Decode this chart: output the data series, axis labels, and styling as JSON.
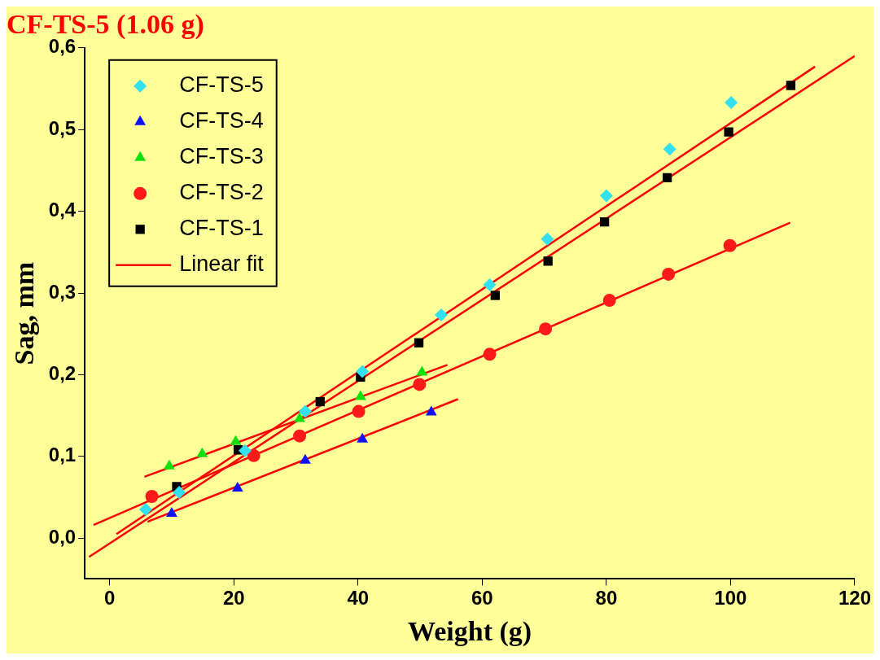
{
  "chart_data": {
    "type": "scatter",
    "title": "CF-TS-5 (1.06 g)",
    "xlabel": "Weight (g)",
    "ylabel": "Sag, mm",
    "xlim": [
      -4,
      120
    ],
    "ylim": [
      -0.05,
      0.6
    ],
    "xticks": [
      0,
      20,
      40,
      60,
      80,
      100,
      120
    ],
    "yticks": [
      {
        "value": 0,
        "label": "0,0"
      },
      {
        "value": 0.1,
        "label": "0,1"
      },
      {
        "value": 0.2,
        "label": "0,2"
      },
      {
        "value": 0.3,
        "label": "0,3"
      },
      {
        "value": 0.4,
        "label": "0,4"
      },
      {
        "value": 0.5,
        "label": "0,5"
      },
      {
        "value": 0.6,
        "label": "0,6"
      }
    ],
    "grid": false,
    "legend": "top left",
    "series": [
      {
        "name": "CF-TS-5",
        "type": "scatter",
        "marker": "diamond",
        "color": "#33e0f0",
        "x": [
          5.8,
          11.2,
          21.8,
          31.5,
          40.7,
          53.4,
          61.2,
          70.5,
          80,
          90.2,
          100.1
        ],
        "values": [
          0.035,
          0.056,
          0.107,
          0.155,
          0.204,
          0.273,
          0.31,
          0.366,
          0.419,
          0.476,
          0.533
        ]
      },
      {
        "name": "CF-TS-4",
        "type": "scatter",
        "marker": "triangle",
        "color": "#1010ff",
        "x": [
          10,
          20.6,
          31.5,
          40.7,
          51.8
        ],
        "values": [
          0.03,
          0.061,
          0.095,
          0.121,
          0.154
        ]
      },
      {
        "name": "CF-TS-3",
        "type": "scatter",
        "marker": "triangle",
        "color": "#10e010",
        "x": [
          9.6,
          14.9,
          20.3,
          30.6,
          40.4,
          50.3
        ],
        "values": [
          0.088,
          0.103,
          0.118,
          0.146,
          0.173,
          0.203
        ]
      },
      {
        "name": "CF-TS-2",
        "type": "scatter",
        "marker": "circle",
        "color": "#ff1a1a",
        "x": [
          6.8,
          23.2,
          30.6,
          40.1,
          49.9,
          61.2,
          70.2,
          80.5,
          90,
          99.9
        ],
        "values": [
          0.051,
          0.101,
          0.125,
          0.155,
          0.188,
          0.225,
          0.256,
          0.291,
          0.323,
          0.358
        ]
      },
      {
        "name": "CF-TS-1",
        "type": "scatter",
        "marker": "square",
        "color": "#000000",
        "x": [
          10.8,
          20.7,
          33.9,
          40.4,
          49.8,
          62.1,
          70.6,
          79.7,
          89.8,
          99.7,
          109.7
        ],
        "values": [
          0.063,
          0.108,
          0.167,
          0.197,
          0.239,
          0.297,
          0.339,
          0.387,
          0.441,
          0.497,
          0.554
        ]
      },
      {
        "name": "Linear fit",
        "type": "line",
        "marker": "none",
        "color": "#ff0000",
        "x": [
          1.1,
          113.6
        ],
        "values": [
          0.005,
          0.577
        ]
      },
      {
        "type": "line",
        "marker": "none",
        "color": "#ff0000",
        "x": [
          -3.3,
          120
        ],
        "values": [
          -0.023,
          0.59
        ]
      },
      {
        "type": "line",
        "marker": "none",
        "color": "#ff0000",
        "x": [
          -2.6,
          109.6
        ],
        "values": [
          0.016,
          0.386
        ]
      },
      {
        "type": "line",
        "marker": "none",
        "color": "#ff0000",
        "x": [
          5.6,
          54.4
        ],
        "values": [
          0.075,
          0.212
        ]
      },
      {
        "type": "line",
        "marker": "none",
        "color": "#ff0000",
        "x": [
          6.1,
          56.1
        ],
        "values": [
          0.02,
          0.17
        ]
      }
    ]
  }
}
